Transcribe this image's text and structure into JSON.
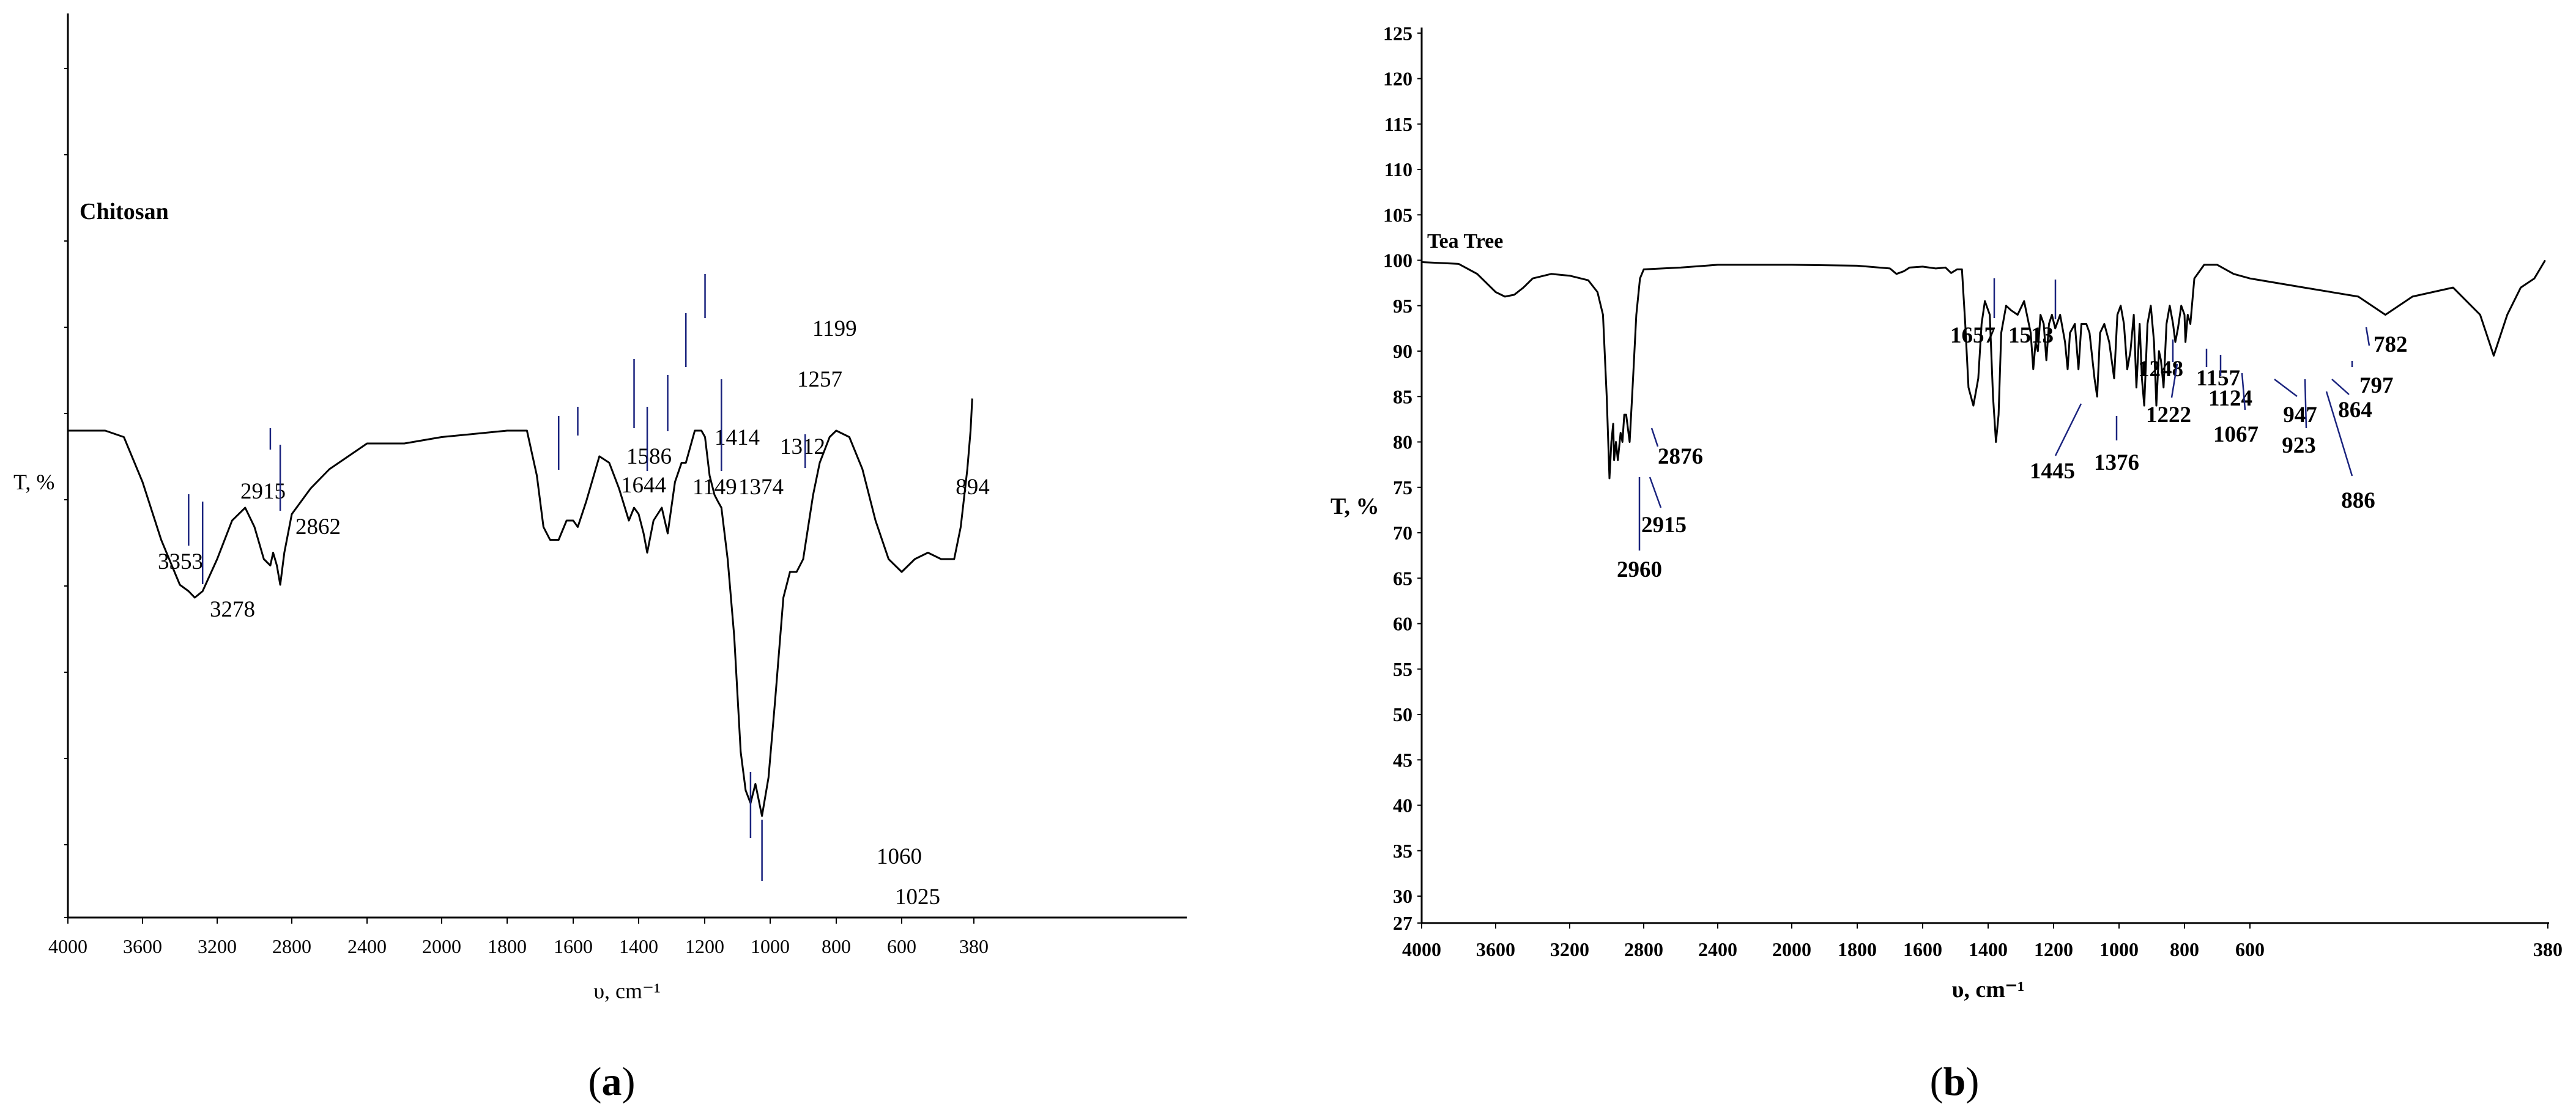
{
  "chart_data": [
    {
      "type": "line",
      "title": "Chitosan",
      "xlabel": "υ, cm⁻¹",
      "ylabel": "T, %",
      "caption": "(a)",
      "x_axis_reversed": true,
      "xlim": [
        4000,
        380
      ],
      "x_ticks": [
        "4000",
        "3600",
        "3200",
        "2800",
        "2400",
        "2000",
        "1800",
        "1600",
        "1400",
        "1200",
        "1000",
        "800",
        "600",
        "380"
      ],
      "y_tick_labels_shown": false,
      "ylim": [
        0,
        100
      ],
      "series": [
        {
          "color": "#000000",
          "points": [
            [
              4000,
              72
            ],
            [
              3800,
              72
            ],
            [
              3700,
              71
            ],
            [
              3600,
              64
            ],
            [
              3500,
              55
            ],
            [
              3400,
              48
            ],
            [
              3353,
              47
            ],
            [
              3320,
              46
            ],
            [
              3278,
              47
            ],
            [
              3200,
              52
            ],
            [
              3120,
              58
            ],
            [
              3050,
              60
            ],
            [
              3000,
              57
            ],
            [
              2950,
              52
            ],
            [
              2915,
              51
            ],
            [
              2900,
              53
            ],
            [
              2880,
              51
            ],
            [
              2862,
              48
            ],
            [
              2840,
              53
            ],
            [
              2800,
              59
            ],
            [
              2700,
              63
            ],
            [
              2600,
              66
            ],
            [
              2500,
              68
            ],
            [
              2400,
              70
            ],
            [
              2200,
              70
            ],
            [
              2000,
              71
            ],
            [
              1800,
              72
            ],
            [
              1740,
              72
            ],
            [
              1710,
              65
            ],
            [
              1690,
              57
            ],
            [
              1670,
              55
            ],
            [
              1644,
              55
            ],
            [
              1620,
              58
            ],
            [
              1600,
              58
            ],
            [
              1586,
              57
            ],
            [
              1560,
              61
            ],
            [
              1520,
              68
            ],
            [
              1490,
              67
            ],
            [
              1460,
              63
            ],
            [
              1430,
              58
            ],
            [
              1414,
              60
            ],
            [
              1400,
              59
            ],
            [
              1385,
              56
            ],
            [
              1374,
              53
            ],
            [
              1355,
              58
            ],
            [
              1330,
              60
            ],
            [
              1312,
              56
            ],
            [
              1290,
              64
            ],
            [
              1270,
              67
            ],
            [
              1257,
              67
            ],
            [
              1230,
              72
            ],
            [
              1210,
              72
            ],
            [
              1199,
              71
            ],
            [
              1185,
              65
            ],
            [
              1170,
              62
            ],
            [
              1160,
              61
            ],
            [
              1149,
              60
            ],
            [
              1130,
              52
            ],
            [
              1110,
              40
            ],
            [
              1090,
              22
            ],
            [
              1075,
              16
            ],
            [
              1060,
              14
            ],
            [
              1045,
              17
            ],
            [
              1025,
              12
            ],
            [
              1005,
              18
            ],
            [
              985,
              30
            ],
            [
              960,
              46
            ],
            [
              940,
              50
            ],
            [
              920,
              50
            ],
            [
              900,
              52
            ],
            [
              894,
              54
            ],
            [
              870,
              62
            ],
            [
              850,
              67
            ],
            [
              820,
              71
            ],
            [
              800,
              72
            ],
            [
              760,
              71
            ],
            [
              720,
              66
            ],
            [
              680,
              58
            ],
            [
              640,
              52
            ],
            [
              600,
              50
            ],
            [
              560,
              52
            ],
            [
              520,
              53
            ],
            [
              480,
              52
            ],
            [
              440,
              52
            ],
            [
              420,
              57
            ],
            [
              400,
              66
            ],
            [
              390,
              72
            ],
            [
              385,
              77
            ]
          ]
        }
      ],
      "peak_annotations": [
        {
          "label": "3353",
          "x": 3353
        },
        {
          "label": "3278",
          "x": 3278
        },
        {
          "label": "2915",
          "x": 2915
        },
        {
          "label": "2862",
          "x": 2862
        },
        {
          "label": "1644",
          "x": 1644
        },
        {
          "label": "1586",
          "x": 1586
        },
        {
          "label": "1414",
          "x": 1414
        },
        {
          "label": "1374",
          "x": 1374
        },
        {
          "label": "1312",
          "x": 1312
        },
        {
          "label": "1257",
          "x": 1257
        },
        {
          "label": "1199",
          "x": 1199
        },
        {
          "label": "1149",
          "x": 1149
        },
        {
          "label": "1060",
          "x": 1060
        },
        {
          "label": "1025",
          "x": 1025
        },
        {
          "label": "894",
          "x": 894
        }
      ]
    },
    {
      "type": "line",
      "title": "Tea Tree",
      "xlabel": "υ, cm⁻¹",
      "ylabel": "T, %",
      "caption": "(b)",
      "x_axis_reversed": true,
      "xlim": [
        4000,
        380
      ],
      "x_ticks": [
        "4000",
        "3600",
        "3200",
        "2800",
        "2400",
        "2000",
        "1800",
        "1600",
        "1400",
        "1200",
        "1000",
        "800",
        "600",
        "380"
      ],
      "ylim": [
        27,
        125
      ],
      "y_ticks": [
        "27",
        "30",
        "35",
        "40",
        "45",
        "50",
        "55",
        "60",
        "65",
        "70",
        "75",
        "80",
        "85",
        "90",
        "95",
        "100",
        "105",
        "110",
        "115",
        "120",
        "125"
      ],
      "series": [
        {
          "color": "#000000",
          "points": [
            [
              4000,
              99.8
            ],
            [
              3800,
              99.6
            ],
            [
              3700,
              98.5
            ],
            [
              3600,
              96.5
            ],
            [
              3550,
              96
            ],
            [
              3500,
              96.2
            ],
            [
              3450,
              97
            ],
            [
              3400,
              98
            ],
            [
              3300,
              98.5
            ],
            [
              3200,
              98.3
            ],
            [
              3100,
              97.8
            ],
            [
              3050,
              96.5
            ],
            [
              3020,
              94
            ],
            [
              3000,
              85
            ],
            [
              2985,
              76
            ],
            [
              2975,
              80
            ],
            [
              2965,
              82
            ],
            [
              2960,
              78
            ],
            [
              2950,
              80
            ],
            [
              2940,
              78
            ],
            [
              2925,
              81
            ],
            [
              2915,
              80
            ],
            [
              2905,
              83
            ],
            [
              2895,
              83
            ],
            [
              2876,
              80
            ],
            [
              2860,
              86
            ],
            [
              2840,
              94
            ],
            [
              2820,
              98
            ],
            [
              2800,
              99
            ],
            [
              2600,
              99.2
            ],
            [
              2400,
              99.5
            ],
            [
              2200,
              99.5
            ],
            [
              2000,
              99.5
            ],
            [
              1800,
              99.4
            ],
            [
              1700,
              99.1
            ],
            [
              1680,
              98.5
            ],
            [
              1657,
              98.8
            ],
            [
              1640,
              99.2
            ],
            [
              1600,
              99.3
            ],
            [
              1560,
              99.1
            ],
            [
              1530,
              99.2
            ],
            [
              1513,
              98.6
            ],
            [
              1495,
              99
            ],
            [
              1480,
              99
            ],
            [
              1470,
              93
            ],
            [
              1460,
              86
            ],
            [
              1445,
              84
            ],
            [
              1430,
              87
            ],
            [
              1420,
              93
            ],
            [
              1410,
              95.5
            ],
            [
              1395,
              94
            ],
            [
              1385,
              85
            ],
            [
              1376,
              80
            ],
            [
              1368,
              83
            ],
            [
              1360,
              92
            ],
            [
              1345,
              95
            ],
            [
              1330,
              94.5
            ],
            [
              1310,
              94
            ],
            [
              1290,
              95.5
            ],
            [
              1270,
              92
            ],
            [
              1262,
              88
            ],
            [
              1255,
              91
            ],
            [
              1248,
              90
            ],
            [
              1240,
              94
            ],
            [
              1230,
              93
            ],
            [
              1222,
              89
            ],
            [
              1214,
              93
            ],
            [
              1205,
              94
            ],
            [
              1195,
              92.5
            ],
            [
              1180,
              94
            ],
            [
              1165,
              91
            ],
            [
              1157,
              88
            ],
            [
              1150,
              92
            ],
            [
              1135,
              93
            ],
            [
              1124,
              88
            ],
            [
              1115,
              93
            ],
            [
              1100,
              93
            ],
            [
              1090,
              92
            ],
            [
              1075,
              87
            ],
            [
              1067,
              85
            ],
            [
              1058,
              92
            ],
            [
              1045,
              93
            ],
            [
              1030,
              91
            ],
            [
              1015,
              87
            ],
            [
              1005,
              94
            ],
            [
              995,
              95
            ],
            [
              985,
              93
            ],
            [
              975,
              88
            ],
            [
              965,
              90
            ],
            [
              955,
              94
            ],
            [
              947,
              86
            ],
            [
              937,
              93
            ],
            [
              930,
              87
            ],
            [
              923,
              84
            ],
            [
              913,
              93
            ],
            [
              903,
              95
            ],
            [
              893,
              91
            ],
            [
              886,
              84
            ],
            [
              878,
              90
            ],
            [
              872,
              89
            ],
            [
              864,
              86
            ],
            [
              855,
              93
            ],
            [
              845,
              95
            ],
            [
              835,
              93
            ],
            [
              828,
              91
            ],
            [
              820,
              92.5
            ],
            [
              810,
              95
            ],
            [
              800,
              94
            ],
            [
              797,
              91
            ],
            [
              790,
              94
            ],
            [
              782,
              93
            ],
            [
              770,
              98
            ],
            [
              740,
              99.5
            ],
            [
              700,
              99.5
            ],
            [
              650,
              98.5
            ],
            [
              600,
              98
            ],
            [
              560,
              97
            ],
            [
              520,
              96
            ],
            [
              500,
              94
            ],
            [
              480,
              96
            ],
            [
              450,
              97
            ],
            [
              430,
              94
            ],
            [
              420,
              89.5
            ],
            [
              410,
              94
            ],
            [
              400,
              97
            ],
            [
              390,
              98
            ],
            [
              382,
              100
            ]
          ]
        }
      ],
      "peak_annotations": [
        {
          "label": "2960",
          "x": 2960
        },
        {
          "label": "2915",
          "x": 2915
        },
        {
          "label": "2876",
          "x": 2876
        },
        {
          "label": "1657",
          "x": 1657
        },
        {
          "label": "1513",
          "x": 1513
        },
        {
          "label": "1445",
          "x": 1445
        },
        {
          "label": "1376",
          "x": 1376
        },
        {
          "label": "1248",
          "x": 1248
        },
        {
          "label": "1222",
          "x": 1222
        },
        {
          "label": "1157",
          "x": 1157
        },
        {
          "label": "1124",
          "x": 1124
        },
        {
          "label": "1067",
          "x": 1067
        },
        {
          "label": "947",
          "x": 947
        },
        {
          "label": "923",
          "x": 923
        },
        {
          "label": "886",
          "x": 886
        },
        {
          "label": "864",
          "x": 864
        },
        {
          "label": "797",
          "x": 797
        },
        {
          "label": "782",
          "x": 782
        }
      ]
    }
  ]
}
